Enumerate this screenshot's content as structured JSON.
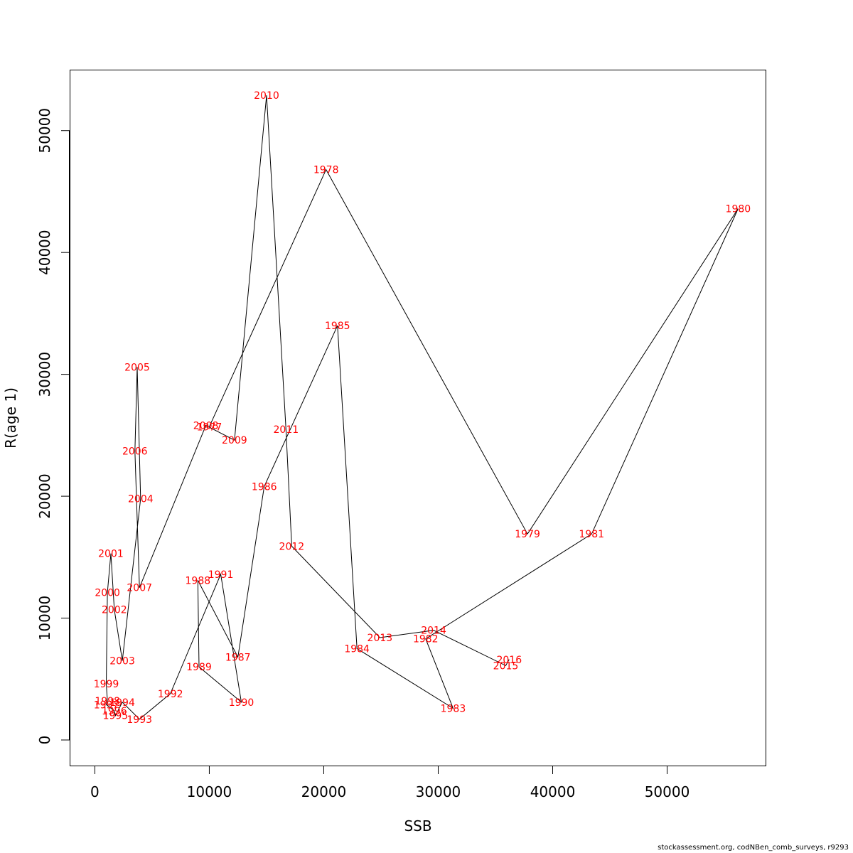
{
  "chart_data": {
    "type": "line",
    "title": "",
    "xlabel": "SSB",
    "ylabel": "R(age 1)",
    "xlim": [
      -2200,
      58600
    ],
    "ylim": [
      -2100,
      55000
    ],
    "xticks": [
      0,
      10000,
      20000,
      30000,
      40000,
      50000
    ],
    "yticks": [
      0,
      10000,
      20000,
      30000,
      40000,
      50000
    ],
    "grid": false,
    "legend": "none",
    "line_color": "#000000",
    "label_color": "#ff0000",
    "points": [
      {
        "label": "1977",
        "x": 10000,
        "y": 25700
      },
      {
        "label": "1978",
        "x": 20200,
        "y": 46800
      },
      {
        "label": "1979",
        "x": 37800,
        "y": 16900
      },
      {
        "label": "1980",
        "x": 56200,
        "y": 43600
      },
      {
        "label": "1981",
        "x": 43400,
        "y": 16900
      },
      {
        "label": "1982",
        "x": 28900,
        "y": 8300
      },
      {
        "label": "1983",
        "x": 31300,
        "y": 2600
      },
      {
        "label": "1984",
        "x": 22900,
        "y": 7500
      },
      {
        "label": "1985",
        "x": 21200,
        "y": 34000
      },
      {
        "label": "1986",
        "x": 14800,
        "y": 20800
      },
      {
        "label": "1987",
        "x": 12500,
        "y": 6800
      },
      {
        "label": "1988",
        "x": 9000,
        "y": 13100
      },
      {
        "label": "1989",
        "x": 9100,
        "y": 6000
      },
      {
        "label": "1990",
        "x": 12800,
        "y": 3100
      },
      {
        "label": "1991",
        "x": 11000,
        "y": 13600
      },
      {
        "label": "1992",
        "x": 6600,
        "y": 3800
      },
      {
        "label": "1993",
        "x": 3900,
        "y": 1700
      },
      {
        "label": "1994",
        "x": 2400,
        "y": 3100
      },
      {
        "label": "1995",
        "x": 1800,
        "y": 2000
      },
      {
        "label": "1996",
        "x": 1700,
        "y": 2400
      },
      {
        "label": "1997",
        "x": 1000,
        "y": 2900
      },
      {
        "label": "1998",
        "x": 1100,
        "y": 3200
      },
      {
        "label": "1999",
        "x": 1000,
        "y": 4600
      },
      {
        "label": "2000",
        "x": 1100,
        "y": 12100
      },
      {
        "label": "2001",
        "x": 1400,
        "y": 15300
      },
      {
        "label": "2002",
        "x": 1700,
        "y": 10700
      },
      {
        "label": "2003",
        "x": 2400,
        "y": 6500
      },
      {
        "label": "2004",
        "x": 4000,
        "y": 19800
      },
      {
        "label": "2005",
        "x": 3700,
        "y": 30600
      },
      {
        "label": "2006",
        "x": 3500,
        "y": 23700
      },
      {
        "label": "2007",
        "x": 3900,
        "y": 12500
      },
      {
        "label": "2008",
        "x": 9700,
        "y": 25800
      },
      {
        "label": "2009",
        "x": 12200,
        "y": 24600
      },
      {
        "label": "2010",
        "x": 15000,
        "y": 52900
      },
      {
        "label": "2011",
        "x": 16700,
        "y": 25500
      },
      {
        "label": "2012",
        "x": 17200,
        "y": 15900
      },
      {
        "label": "2013",
        "x": 24900,
        "y": 8400
      },
      {
        "label": "2014",
        "x": 29600,
        "y": 9000
      },
      {
        "label": "2015",
        "x": 35900,
        "y": 6100
      },
      {
        "label": "2016",
        "x": 36200,
        "y": 6600
      }
    ]
  },
  "footer": {
    "text": "stockassessment.org, codNBen_comb_surveys, r9293"
  }
}
